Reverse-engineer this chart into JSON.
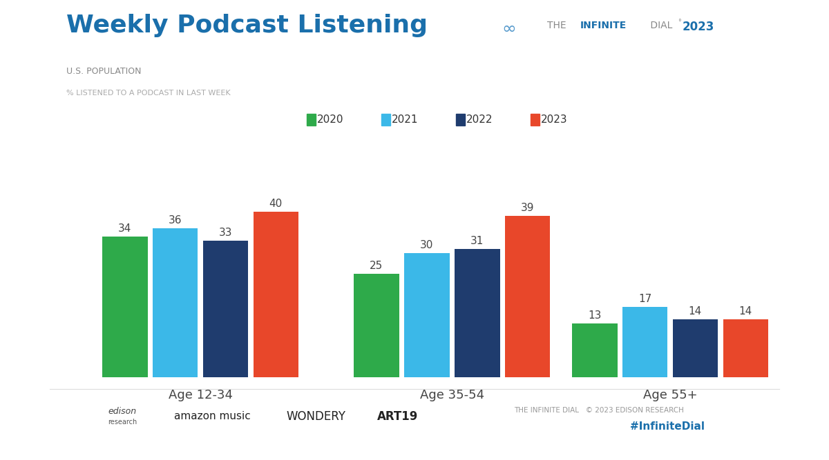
{
  "title": "Weekly Podcast Listening",
  "subtitle1": "U.S. POPULATION",
  "subtitle2": "% LISTENED TO A PODCAST IN LAST WEEK",
  "categories": [
    "Age 12-34",
    "Age 35-54",
    "Age 55+"
  ],
  "years": [
    "2020",
    "2021",
    "2022",
    "2023"
  ],
  "values": {
    "Age 12-34": [
      34,
      36,
      33,
      40
    ],
    "Age 35-54": [
      25,
      30,
      31,
      39
    ],
    "Age 55+": [
      13,
      17,
      14,
      14
    ]
  },
  "bar_colors": [
    "#2EAA4A",
    "#3BB8E8",
    "#1F3C6E",
    "#E8472A"
  ],
  "title_color": "#1A6FAB",
  "subtitle1_color": "#888888",
  "subtitle2_color": "#AAAAAA",
  "label_color": "#444444",
  "background_color": "#FFFFFF",
  "bar_width": 0.18,
  "footer_text1": "THE INFINITE DIAL   © 2023 EDISON RESEARCH",
  "footer_text2": "#InfiniteDial",
  "footer_color1": "#999999",
  "footer_color2": "#1A6FAB",
  "ylim": [
    0,
    50
  ],
  "group_positions": [
    0.32,
    1.22,
    2.0
  ],
  "xlim": [
    -0.1,
    2.42
  ]
}
